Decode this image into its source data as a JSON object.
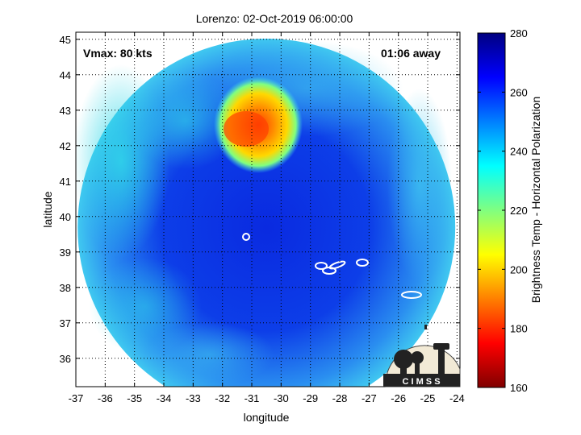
{
  "chart_data": {
    "type": "heatmap",
    "title": "Lorenzo: 02-Oct-2019 06:00:00",
    "xlabel": "longitude",
    "ylabel": "latitude",
    "xlim": [
      -37,
      -23.9
    ],
    "ylim": [
      35.2,
      45.2
    ],
    "x_ticks": [
      -37,
      -36,
      -35,
      -34,
      -33,
      -32,
      -31,
      -30,
      -29,
      -28,
      -27,
      -26,
      -25,
      -24
    ],
    "y_ticks": [
      36,
      37,
      38,
      39,
      40,
      41,
      42,
      43,
      44,
      45
    ],
    "grid": true,
    "annotations": {
      "vmax": "Vmax: 80 kts",
      "away": "01:06 away"
    },
    "colorbar": {
      "label": "Brightness Temp - Horizontal Polarization",
      "range": [
        160,
        280
      ],
      "ticks": [
        160,
        180,
        200,
        220,
        240,
        260,
        280
      ],
      "colormap": "jet"
    },
    "swath_center": {
      "lon": -30.5,
      "lat": 39.7
    },
    "cold_region": {
      "lon_range": [
        -31.8,
        -30.0
      ],
      "lat_range": [
        41.8,
        43.5
      ],
      "min_temp": 175
    },
    "logo_text": "C I M S S"
  }
}
